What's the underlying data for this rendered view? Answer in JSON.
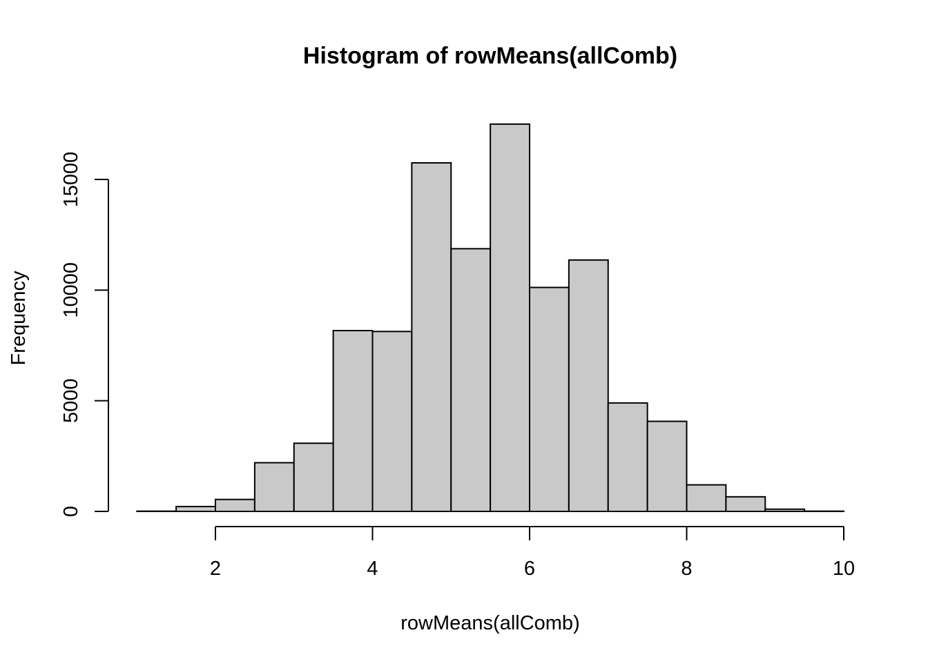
{
  "chart_data": {
    "type": "bar",
    "title": "Histogram of rowMeans(allComb)",
    "xlabel": "rowMeans(allComb)",
    "ylabel": "Frequency",
    "x_ticks": [
      "2",
      "4",
      "6",
      "8",
      "10"
    ],
    "y_ticks": [
      "0",
      "5000",
      "10000",
      "15000"
    ],
    "xlim": [
      1,
      10
    ],
    "ylim": [
      0,
      17500
    ],
    "bins": [
      {
        "x0": 1.0,
        "x1": 1.5,
        "value": 10
      },
      {
        "x0": 1.5,
        "x1": 2.0,
        "value": 220
      },
      {
        "x0": 2.0,
        "x1": 2.5,
        "value": 540
      },
      {
        "x0": 2.5,
        "x1": 3.0,
        "value": 2200
      },
      {
        "x0": 3.0,
        "x1": 3.5,
        "value": 3080
      },
      {
        "x0": 3.5,
        "x1": 4.0,
        "value": 8170
      },
      {
        "x0": 4.0,
        "x1": 4.5,
        "value": 8130
      },
      {
        "x0": 4.5,
        "x1": 5.0,
        "value": 15750
      },
      {
        "x0": 5.0,
        "x1": 5.5,
        "value": 11870
      },
      {
        "x0": 5.5,
        "x1": 6.0,
        "value": 17500
      },
      {
        "x0": 6.0,
        "x1": 6.5,
        "value": 10120
      },
      {
        "x0": 6.5,
        "x1": 7.0,
        "value": 11360
      },
      {
        "x0": 7.0,
        "x1": 7.5,
        "value": 4900
      },
      {
        "x0": 7.5,
        "x1": 8.0,
        "value": 4070
      },
      {
        "x0": 8.0,
        "x1": 8.5,
        "value": 1200
      },
      {
        "x0": 8.5,
        "x1": 9.0,
        "value": 660
      },
      {
        "x0": 9.0,
        "x1": 9.5,
        "value": 100
      },
      {
        "x0": 9.5,
        "x1": 10.0,
        "value": 10
      }
    ],
    "colors": {
      "bar_fill": "#c9c9c9",
      "bar_stroke": "#000000"
    },
    "grid": false,
    "legend": "none"
  }
}
